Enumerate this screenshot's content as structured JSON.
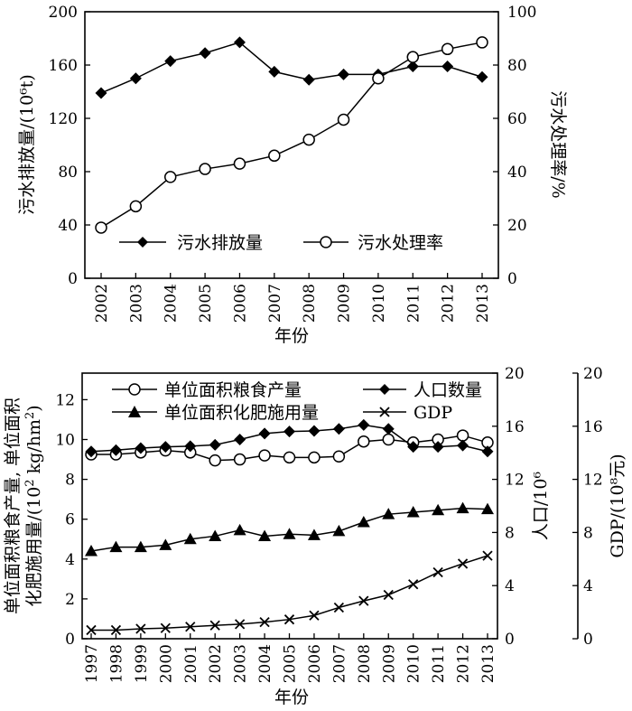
{
  "chart_data": [
    {
      "type": "line",
      "xlabel": "年份",
      "ylabel_left": "污水排放量/(10⁶t)",
      "ylabel_right": "污水处理率/%",
      "ylim_left": [
        0,
        200
      ],
      "ylim_right": [
        0,
        100
      ],
      "yticks_left": [
        "0",
        "40",
        "80",
        "120",
        "160",
        "200"
      ],
      "yticks_right": [
        "0",
        "20",
        "40",
        "60",
        "80",
        "100"
      ],
      "x": [
        "2002",
        "2003",
        "2004",
        "2005",
        "2006",
        "2007",
        "2008",
        "2009",
        "2010",
        "2011",
        "2012",
        "2013"
      ],
      "series": [
        {
          "name": "污水排放量",
          "axis": "left",
          "marker": "filled-diamond",
          "values": [
            139,
            150,
            163,
            169,
            177,
            155,
            149,
            153,
            153,
            159,
            159,
            151
          ]
        },
        {
          "name": "污水处理率",
          "axis": "right",
          "marker": "open-circle",
          "values": [
            19,
            27,
            38,
            41,
            43,
            46,
            52,
            59.5,
            75,
            83,
            86,
            88.5
          ]
        }
      ],
      "legend": "inside-bottom"
    },
    {
      "type": "line",
      "xlabel": "年份",
      "ylabel_left_line1": "单位面积粮食产量, 单位面积",
      "ylabel_left_line2_prefix": "化肥施用量/(10",
      "ylabel_left_line2_sup": "2",
      "ylabel_left_line2_mid": " kg/hm",
      "ylabel_left_line2_sup2": "2",
      "ylabel_left_line2_suffix": ")",
      "ylabel_right1": "人口/10⁶",
      "ylabel_right2": "GDP/(10⁸元)",
      "ylim_left": [
        0,
        13.333
      ],
      "ylim_right": [
        0,
        20
      ],
      "yticks_left": [
        "0",
        "2",
        "4",
        "6",
        "8",
        "10",
        "12"
      ],
      "yticks_right1": [
        "0",
        "4",
        "8",
        "12",
        "16",
        "20"
      ],
      "yticks_right2": [
        "0",
        "4",
        "8",
        "12",
        "16",
        "20"
      ],
      "x": [
        "1997",
        "1998",
        "1999",
        "2000",
        "2001",
        "2002",
        "2003",
        "2004",
        "2005",
        "2006",
        "2007",
        "2008",
        "2009",
        "2010",
        "2011",
        "2012",
        "2013"
      ],
      "series": [
        {
          "name": "单位面积粮食产量",
          "axis": "left",
          "marker": "open-circle",
          "values": [
            9.25,
            9.25,
            9.35,
            9.45,
            9.35,
            8.95,
            9.0,
            9.2,
            9.1,
            9.1,
            9.15,
            9.9,
            10.0,
            9.85,
            10.0,
            10.2,
            9.85
          ]
        },
        {
          "name": "人口数量",
          "axis": "right1",
          "marker": "filled-diamond",
          "values": [
            14.1,
            14.2,
            14.35,
            14.45,
            14.5,
            14.6,
            15.0,
            15.45,
            15.6,
            15.65,
            15.8,
            16.1,
            15.8,
            14.45,
            14.45,
            14.55,
            14.1
          ]
        },
        {
          "name": "单位面积化肥施用量",
          "axis": "left",
          "marker": "filled-triangle",
          "values": [
            4.4,
            4.6,
            4.6,
            4.7,
            5.0,
            5.15,
            5.45,
            5.15,
            5.25,
            5.2,
            5.4,
            5.85,
            6.25,
            6.35,
            6.45,
            6.55,
            6.5
          ]
        },
        {
          "name": "GDP",
          "axis": "right2",
          "marker": "x-cross",
          "values": [
            0.65,
            0.65,
            0.75,
            0.8,
            0.9,
            1.0,
            1.1,
            1.25,
            1.45,
            1.75,
            2.35,
            2.85,
            3.3,
            4.1,
            5.0,
            5.65,
            6.25
          ]
        }
      ],
      "legend": "inside-top"
    }
  ]
}
